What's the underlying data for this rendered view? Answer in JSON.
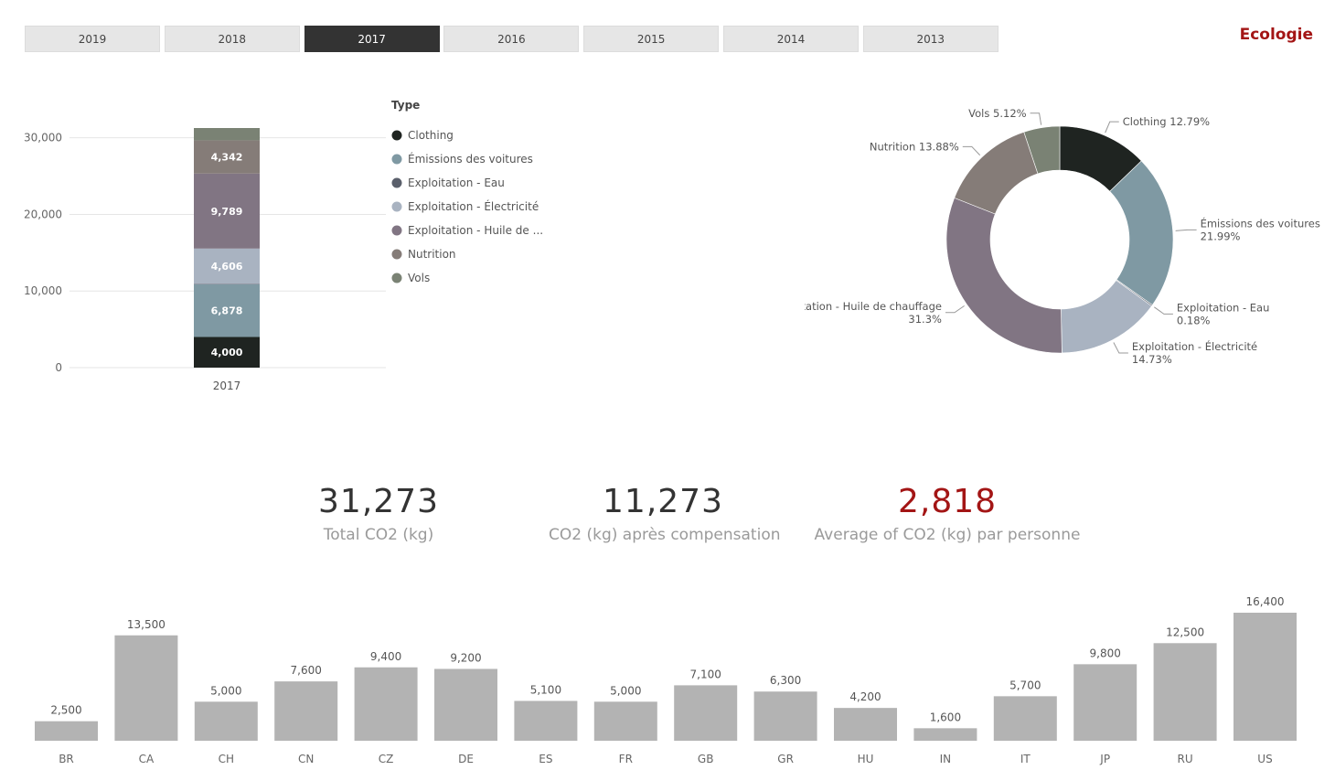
{
  "header": {
    "brand": "Ecologie",
    "years": [
      "2019",
      "2018",
      "2017",
      "2016",
      "2015",
      "2014",
      "2013"
    ],
    "active_year": "2017"
  },
  "kpis": [
    {
      "value": "31,273",
      "label": "Total CO2 (kg)"
    },
    {
      "value": "11,273",
      "label": "CO2 (kg) après compensation"
    },
    {
      "value": "2,818",
      "label": "Average of CO2 (kg) par personne"
    }
  ],
  "chart_data": [
    {
      "type": "bar",
      "stacked": true,
      "categories": [
        "2017"
      ],
      "yticks": [
        "0",
        "10,000",
        "20,000",
        "30,000"
      ],
      "ylim": [
        0,
        31273
      ],
      "grid": true,
      "legend_title": "Type",
      "legend_position": "right",
      "series": [
        {
          "name": "Clothing",
          "legend": "Clothing",
          "values": [
            4000
          ],
          "label": "4,000",
          "color": "#1f2421"
        },
        {
          "name": "Émissions des voitures",
          "legend": "Émissions des voitures",
          "values": [
            6878
          ],
          "label": "6,878",
          "color": "#7f99a3"
        },
        {
          "name": "Exploitation - Eau",
          "legend": "Exploitation - Eau",
          "values": [
            56
          ],
          "label": "",
          "color": "#5a5f6b"
        },
        {
          "name": "Exploitation - Électricité",
          "legend": "Exploitation - Électricité",
          "values": [
            4606
          ],
          "label": "4,606",
          "color": "#a9b3c1"
        },
        {
          "name": "Exploitation - Huile de chauffage",
          "legend": "Exploitation - Huile de ...",
          "values": [
            9789
          ],
          "label": "9,789",
          "color": "#817583"
        },
        {
          "name": "Nutrition",
          "legend": "Nutrition",
          "values": [
            4342
          ],
          "label": "4,342",
          "color": "#857c78"
        },
        {
          "name": "Vols",
          "legend": "Vols",
          "values": [
            1602
          ],
          "label": "",
          "color": "#7a8274"
        }
      ]
    },
    {
      "type": "pie",
      "donut": true,
      "slices": [
        {
          "name": "Clothing",
          "pct": 12.79,
          "label": [
            "Clothing 12.79%"
          ],
          "color": "#1f2421"
        },
        {
          "name": "Émissions des voitures",
          "pct": 21.99,
          "label": [
            "Émissions des voitures",
            "21.99%"
          ],
          "color": "#7f99a3"
        },
        {
          "name": "Exploitation - Eau",
          "pct": 0.18,
          "label": [
            "Exploitation - Eau",
            "0.18%"
          ],
          "color": "#5a5f6b"
        },
        {
          "name": "Exploitation - Électricité",
          "pct": 14.73,
          "label": [
            "Exploitation - Électricité",
            "14.73%"
          ],
          "color": "#a9b3c1"
        },
        {
          "name": "Exploitation - Huile de chauffage",
          "pct": 31.3,
          "label": [
            "Exploitation - Huile de chauffage",
            "31.3%"
          ],
          "color": "#817583"
        },
        {
          "name": "Nutrition",
          "pct": 13.88,
          "label": [
            "Nutrition 13.88%"
          ],
          "color": "#857c78"
        },
        {
          "name": "Vols",
          "pct": 5.12,
          "label": [
            "Vols 5.12%"
          ],
          "color": "#7a8274"
        }
      ]
    },
    {
      "type": "bar",
      "categories": [
        "BR",
        "CA",
        "CH",
        "CN",
        "CZ",
        "DE",
        "ES",
        "FR",
        "GB",
        "GR",
        "HU",
        "IN",
        "IT",
        "JP",
        "RU",
        "US"
      ],
      "values": [
        2500,
        13500,
        5000,
        7600,
        9400,
        9200,
        5100,
        5000,
        7100,
        6300,
        4200,
        1600,
        5700,
        9800,
        12500,
        16400
      ],
      "labels": [
        "2,500",
        "13,500",
        "5,000",
        "7,600",
        "9,400",
        "9,200",
        "5,100",
        "5,000",
        "7,100",
        "6,300",
        "4,200",
        "1,600",
        "5,700",
        "9,800",
        "12,500",
        "16,400"
      ],
      "color": "#b3b3b3"
    }
  ]
}
